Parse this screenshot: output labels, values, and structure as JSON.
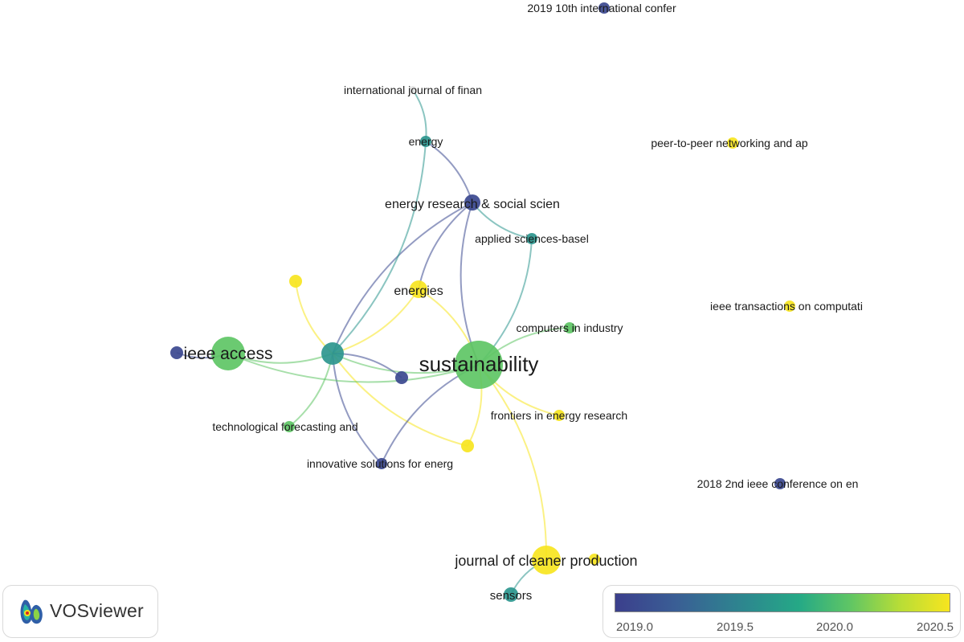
{
  "app": {
    "name": "VOSviewer"
  },
  "legend": {
    "ticks": [
      "2019.0",
      "2019.5",
      "2020.0",
      "2020.5"
    ],
    "colors": [
      "#3b3f8c",
      "#2c8a8e",
      "#5ec565",
      "#f7e51f"
    ]
  },
  "nodes": [
    {
      "id": "sustainability",
      "label": "sustainability",
      "year": 2020.0
    },
    {
      "id": "ieee-access",
      "label": "ieee access",
      "year": 2020.0
    },
    {
      "id": "journal-of-cleaner-production",
      "label": "journal of cleaner production",
      "year": 2020.6
    },
    {
      "id": "energies",
      "label": "energies",
      "year": 2020.6
    },
    {
      "id": "energy-research-social-science",
      "label": "energy research & social scien",
      "year": 2019.0
    },
    {
      "id": "energy",
      "label": "energy",
      "year": 2019.6
    },
    {
      "id": "international-journal-of-financial",
      "label": "international journal of finan",
      "year": null
    },
    {
      "id": "applied-sciences-basel",
      "label": "applied sciences-basel",
      "year": 2019.6
    },
    {
      "id": "computers-in-industry",
      "label": "computers in industry",
      "year": 2020.0
    },
    {
      "id": "frontiers-in-energy-research",
      "label": "frontiers in energy research",
      "year": 2020.6
    },
    {
      "id": "technological-forecasting",
      "label": "technological forecasting and",
      "year": 2020.0
    },
    {
      "id": "innovative-solutions-for-energy",
      "label": "innovative solutions for energ",
      "year": 2019.0
    },
    {
      "id": "sensors",
      "label": "sensors",
      "year": 2019.6
    },
    {
      "id": "ieee-conference-2019",
      "label": "2019 10th international confer",
      "year": 2019.0
    },
    {
      "id": "peer-to-peer-networking",
      "label": "peer-to-peer networking and ap",
      "year": 2020.6
    },
    {
      "id": "ieee-transactions-computational",
      "label": "ieee transactions on computati",
      "year": 2020.6
    },
    {
      "id": "ieee-conference-2018",
      "label": "2018 2nd ieee conference on en",
      "year": 2019.0
    },
    {
      "id": "hub-node",
      "label": "",
      "year": 2019.6
    },
    {
      "id": "unlabeled-yellow-left",
      "label": "",
      "year": 2020.6
    },
    {
      "id": "unlabeled-purple-center",
      "label": "",
      "year": 2019.0
    },
    {
      "id": "unlabeled-purple-left",
      "label": "",
      "year": 2019.0
    },
    {
      "id": "unlabeled-yellow-lower",
      "label": "",
      "year": 2020.6
    },
    {
      "id": "unlabeled-yellow-cleaner",
      "label": "",
      "year": 2020.6
    }
  ],
  "links": [
    [
      "hub-node",
      "sustainability"
    ],
    [
      "hub-node",
      "ieee-access"
    ],
    [
      "hub-node",
      "energies"
    ],
    [
      "hub-node",
      "energy-research-social-science"
    ],
    [
      "hub-node",
      "energy"
    ],
    [
      "hub-node",
      "technological-forecasting"
    ],
    [
      "hub-node",
      "innovative-solutions-for-energy"
    ],
    [
      "hub-node",
      "unlabeled-yellow-left"
    ],
    [
      "hub-node",
      "unlabeled-yellow-lower"
    ],
    [
      "hub-node",
      "unlabeled-purple-center"
    ],
    [
      "ieee-access",
      "sustainability"
    ],
    [
      "ieee-access",
      "unlabeled-purple-left"
    ],
    [
      "sustainability",
      "energies"
    ],
    [
      "sustainability",
      "energy-research-social-science"
    ],
    [
      "sustainability",
      "applied-sciences-basel"
    ],
    [
      "sustainability",
      "computers-in-industry"
    ],
    [
      "sustainability",
      "frontiers-in-energy-research"
    ],
    [
      "sustainability",
      "journal-of-cleaner-production"
    ],
    [
      "sustainability",
      "innovative-solutions-for-energy"
    ],
    [
      "sustainability",
      "unlabeled-yellow-lower"
    ],
    [
      "energy",
      "international-journal-of-financial"
    ],
    [
      "energy",
      "energy-research-social-science"
    ],
    [
      "energy-research-social-science",
      "applied-sciences-basel"
    ],
    [
      "energies",
      "energy-research-social-science"
    ],
    [
      "journal-of-cleaner-production",
      "sensors"
    ]
  ]
}
